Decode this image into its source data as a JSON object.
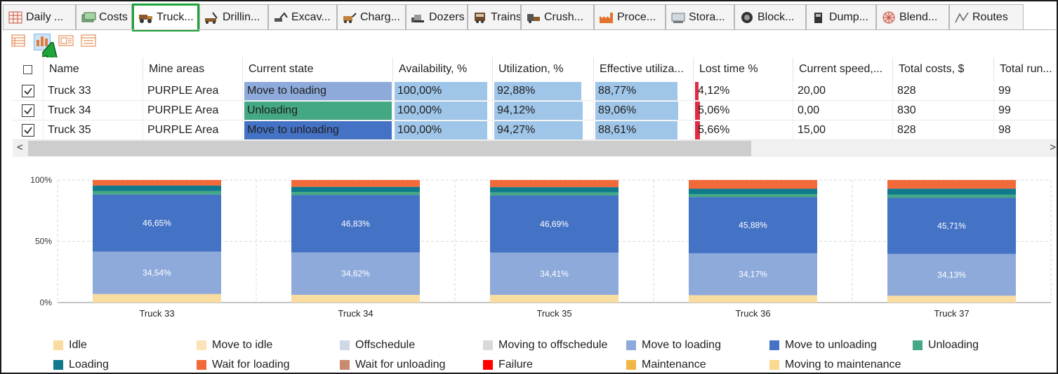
{
  "tabs": [
    {
      "label": "Daily ...",
      "icon": "table-icon"
    },
    {
      "label": "Costs",
      "icon": "money-icon"
    },
    {
      "label": "Truck...",
      "icon": "truck-icon",
      "active": true
    },
    {
      "label": "Drillin...",
      "icon": "drill-rig-icon"
    },
    {
      "label": "Excav...",
      "icon": "excavator-icon"
    },
    {
      "label": "Charg...",
      "icon": "charger-icon"
    },
    {
      "label": "Dozers",
      "icon": "dozer-icon"
    },
    {
      "label": "Trains",
      "icon": "train-icon"
    },
    {
      "label": "Crush...",
      "icon": "crusher-icon"
    },
    {
      "label": "Proce...",
      "icon": "factory-icon"
    },
    {
      "label": "Stora...",
      "icon": "storage-icon"
    },
    {
      "label": "Block...",
      "icon": "block-icon"
    },
    {
      "label": "Dump...",
      "icon": "dump-icon"
    },
    {
      "label": "Blend...",
      "icon": "blend-icon"
    },
    {
      "label": "Routes",
      "icon": "routes-icon"
    }
  ],
  "toolbar": [
    {
      "icon": "table-view-icon"
    },
    {
      "icon": "bar-chart-view-icon",
      "active": true
    },
    {
      "icon": "card-view-icon"
    },
    {
      "icon": "list-view-icon"
    }
  ],
  "grid": {
    "columns": [
      "Name",
      "Mine areas",
      "Current state",
      "Availability, %",
      "Utilization, %",
      "Effective utiliza...",
      "Lost time %",
      "Current speed,...",
      "Total costs, $",
      "Total run..."
    ],
    "rows": [
      {
        "checked": true,
        "name": "Truck 33",
        "area": "PURPLE Area",
        "state": "Move to loading",
        "state_color": "#8eaadb",
        "availability": "100,00%",
        "availability_value": 100.0,
        "utilization": "92,88%",
        "utilization_value": 92.88,
        "effective": "88,77%",
        "effective_value": 88.77,
        "lost": "4,12%",
        "lost_value": 4.12,
        "speed": "20,00",
        "costs": "828",
        "run": "99"
      },
      {
        "checked": true,
        "name": "Truck 34",
        "area": "PURPLE Area",
        "state": "Unloading",
        "state_color": "#43a883",
        "availability": "100,00%",
        "availability_value": 100.0,
        "utilization": "94,12%",
        "utilization_value": 94.12,
        "effective": "89,06%",
        "effective_value": 89.06,
        "lost": "5,06%",
        "lost_value": 5.06,
        "speed": "0,00",
        "costs": "830",
        "run": "99"
      },
      {
        "checked": true,
        "name": "Truck 35",
        "area": "PURPLE Area",
        "state": "Move to unloading",
        "state_color": "#4472c4",
        "availability": "100,00%",
        "availability_value": 100.0,
        "utilization": "94,27%",
        "utilization_value": 94.27,
        "effective": "88,61%",
        "effective_value": 88.61,
        "lost": "5,66%",
        "lost_value": 5.66,
        "speed": "15,00",
        "costs": "828",
        "run": "98"
      }
    ]
  },
  "scrollbar": {
    "left_arrow": "<",
    "right_arrow": ">"
  },
  "colors": {
    "bar_fill": "#9fc5e8",
    "lost_fill": "#e02b44",
    "tab_active_border": "#1fa33b"
  },
  "chart_data": {
    "type": "bar",
    "stacked": true,
    "normalized": true,
    "categories": [
      "Truck 33",
      "Truck 34",
      "Truck 35",
      "Truck 36",
      "Truck 37"
    ],
    "ylim": [
      0,
      100
    ],
    "yticks": [
      "0%",
      "50%",
      "100%"
    ],
    "grid": true,
    "legend_position": "bottom",
    "series": [
      {
        "name": "Idle",
        "color": "#f9dca0",
        "values": [
          7.0,
          6.3,
          6.3,
          6.0,
          5.6
        ]
      },
      {
        "name": "Move to idle",
        "color": "#fde2b8",
        "values": [
          0,
          0,
          0,
          0,
          0
        ]
      },
      {
        "name": "Offschedule",
        "color": "#cfd8e5",
        "values": [
          0,
          0,
          0,
          0,
          0
        ]
      },
      {
        "name": "Moving to offschedule",
        "color": "#d9d9d9",
        "values": [
          0,
          0,
          0,
          0,
          0
        ]
      },
      {
        "name": "Move to loading",
        "color": "#8eaadb",
        "values": [
          34.54,
          34.62,
          34.41,
          34.17,
          34.13
        ],
        "labels": [
          "34,54%",
          "34,62%",
          "34,41%",
          "34,17%",
          "34,13%"
        ]
      },
      {
        "name": "Move to unloading",
        "color": "#4472c4",
        "values": [
          46.65,
          46.83,
          46.69,
          45.88,
          45.71
        ],
        "labels": [
          "46,65%",
          "46,83%",
          "46,69%",
          "45,88%",
          "45,71%"
        ]
      },
      {
        "name": "Unloading",
        "color": "#43a883",
        "values": [
          2.8,
          2.5,
          2.5,
          2.5,
          2.6
        ]
      },
      {
        "name": "Loading",
        "color": "#0f7a8c",
        "values": [
          4.5,
          4.2,
          4.3,
          4.3,
          4.9
        ]
      },
      {
        "name": "Wait for loading",
        "color": "#f26a3a",
        "values": [
          4.51,
          5.55,
          5.8,
          7.15,
          7.06
        ]
      },
      {
        "name": "Wait for unloading",
        "color": "#c98b6f",
        "values": [
          0,
          0,
          0,
          0,
          0
        ]
      },
      {
        "name": "Failure",
        "color": "#ff0000",
        "values": [
          0,
          0,
          0,
          0,
          0
        ]
      },
      {
        "name": "Maintenance",
        "color": "#f2b646",
        "values": [
          0,
          0,
          0,
          0,
          0
        ]
      },
      {
        "name": "Moving to maintenance",
        "color": "#fad890",
        "values": [
          0,
          0,
          0,
          0,
          0
        ]
      }
    ]
  }
}
